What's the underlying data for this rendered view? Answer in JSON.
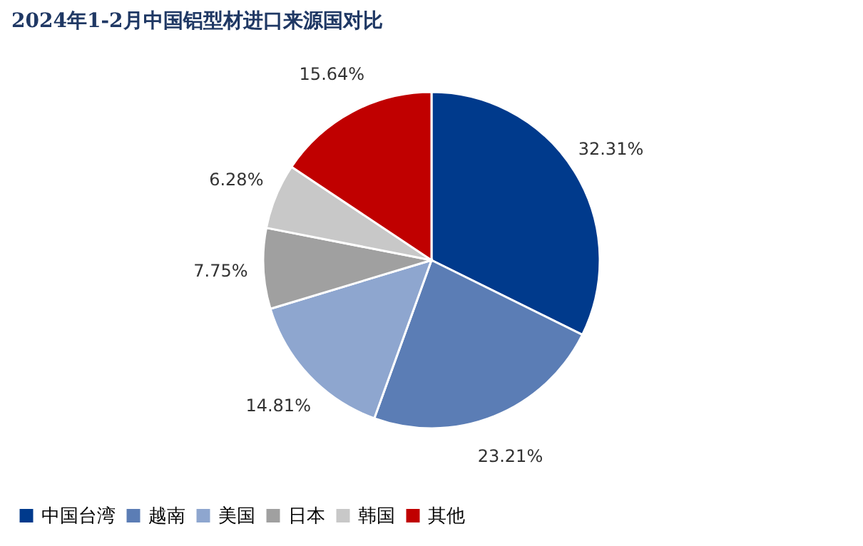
{
  "chart_data": {
    "type": "pie",
    "title": "2024年1-2月中国铝型材进口来源国对比",
    "categories": [
      "中国台湾",
      "越南",
      "美国",
      "日本",
      "韩国",
      "其他"
    ],
    "values": [
      32.31,
      23.21,
      14.81,
      7.75,
      6.28,
      15.64
    ],
    "colors": [
      "#003a8c",
      "#5b7db5",
      "#8ea6cf",
      "#a0a0a0",
      "#c8c8c8",
      "#c00000"
    ],
    "value_labels": [
      "32.31%",
      "23.21%",
      "14.81%",
      "7.75%",
      "6.28%",
      "15.64%"
    ],
    "legend": "bottom"
  }
}
